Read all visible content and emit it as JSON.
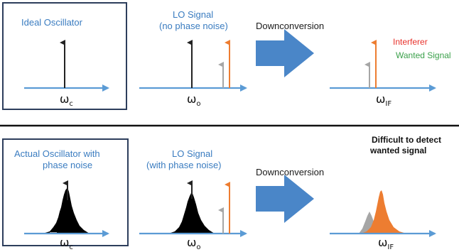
{
  "top": {
    "ideal_title": "Ideal Oscillator",
    "lo_title_line1": "LO Signal",
    "lo_title_line2": "(no phase noise)",
    "downconversion": "Downconversion",
    "interferer": "Interferer",
    "wanted": "Wanted Signal",
    "omega_c_sub": "c",
    "omega_o_sub": "o",
    "omega_if_sub": "IF"
  },
  "bottom": {
    "actual_title_line1": "Actual Oscillator with",
    "actual_title_line2": "phase noise",
    "lo_title_line1": "LO Signal",
    "lo_title_line2": "(with phase noise)",
    "downconversion": "Downconversion",
    "difficult_line1": "Difficult to detect",
    "difficult_line2": "wanted signal",
    "omega_c_sub": "c",
    "omega_o_sub": "o",
    "omega_if_sub": "IF"
  },
  "colors": {
    "axis_blue": "#5b9bd5",
    "big_arrow_blue": "#4a86c8",
    "orange": "#ed7d31",
    "grey": "#a6a6a6",
    "interferer_red": "#e8302a",
    "wanted_green": "#3aa04a",
    "label_blue": "#3a7cc0",
    "noise_black": "#000000"
  }
}
